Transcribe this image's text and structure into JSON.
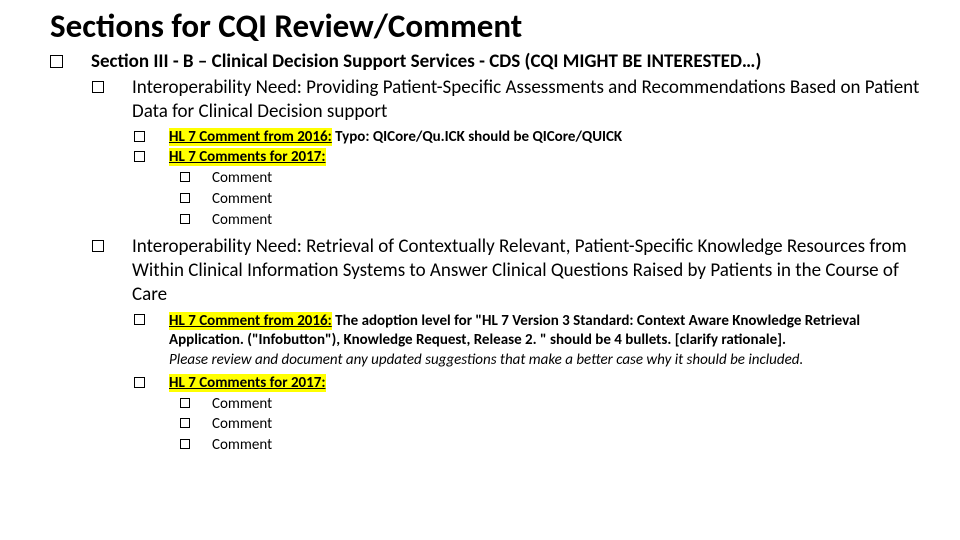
{
  "title": "Sections for CQI Review/Comment",
  "section": {
    "heading": "Section III - B – Clinical Decision Support Services - CDS  (CQI MIGHT BE INTERESTED…)",
    "need1": "Interoperability Need: Providing Patient-Specific Assessments and Recommendations Based on Patient Data for Clinical Decision support",
    "c2016_a_label": "HL 7 Comment from 2016:",
    "c2016_a_body": " Typo: QICore/Qu.ICK should be QICore/QUICK",
    "c2017_label": "HL 7 Comments for 2017:",
    "comment": "Comment",
    "need2": "Interoperability Need: Retrieval of Contextually Relevant, Patient-Specific Knowledge Resources from Within Clinical Information Systems to Answer Clinical Questions Raised by Patients in the Course of Care",
    "c2016_b_label": "HL 7 Comment from 2016:",
    "c2016_b_body1": " The adoption level for \"HL 7 Version 3 Standard: Context Aware Knowledge Retrieval Application. (\"Infobutton\"), Knowledge Request, Release 2. \" should  be 4 bullets.  [clarify rationale].",
    "c2016_b_body2": "Please review and document any updated suggestions that make a better case why it should be included."
  },
  "colors": {
    "highlight": "#ffff00",
    "text": "#000000",
    "background": "#ffffff"
  }
}
